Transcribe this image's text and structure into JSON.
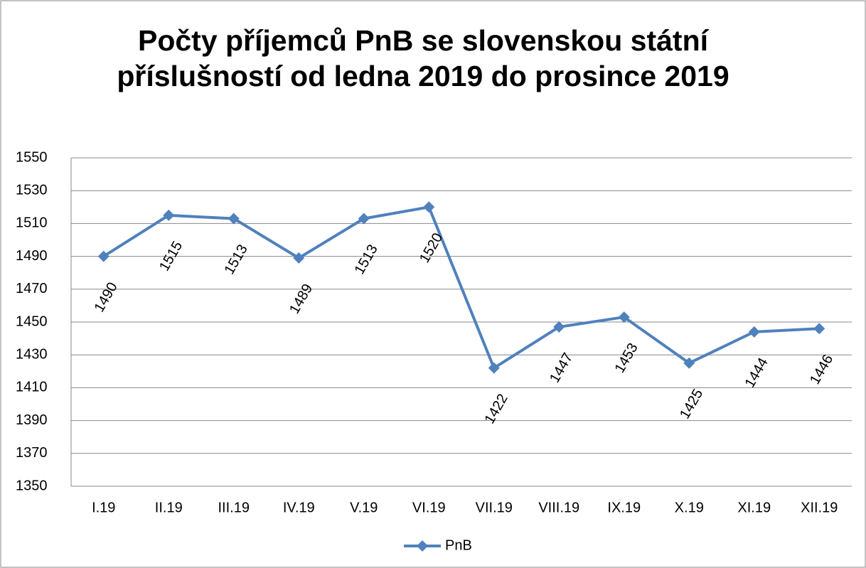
{
  "chart_data": {
    "type": "line",
    "title": "Počty příjemců PnB se slovenskou státní příslušností od ledna 2019 do prosince 2019",
    "categories": [
      "I.19",
      "II.19",
      "III.19",
      "IV.19",
      "V.19",
      "VI.19",
      "VII.19",
      "VIII.19",
      "IX.19",
      "X.19",
      "XI.19",
      "XII.19"
    ],
    "series": [
      {
        "name": "PnB",
        "color": "#4f81bd",
        "values": [
          1490,
          1515,
          1513,
          1489,
          1513,
          1520,
          1422,
          1447,
          1453,
          1425,
          1444,
          1446
        ]
      }
    ],
    "ylim": [
      1350,
      1550
    ],
    "yticks": [
      1350,
      1370,
      1390,
      1410,
      1430,
      1450,
      1470,
      1490,
      1510,
      1530,
      1550
    ],
    "grid": true,
    "legend": "bottom",
    "data_labels": true
  }
}
